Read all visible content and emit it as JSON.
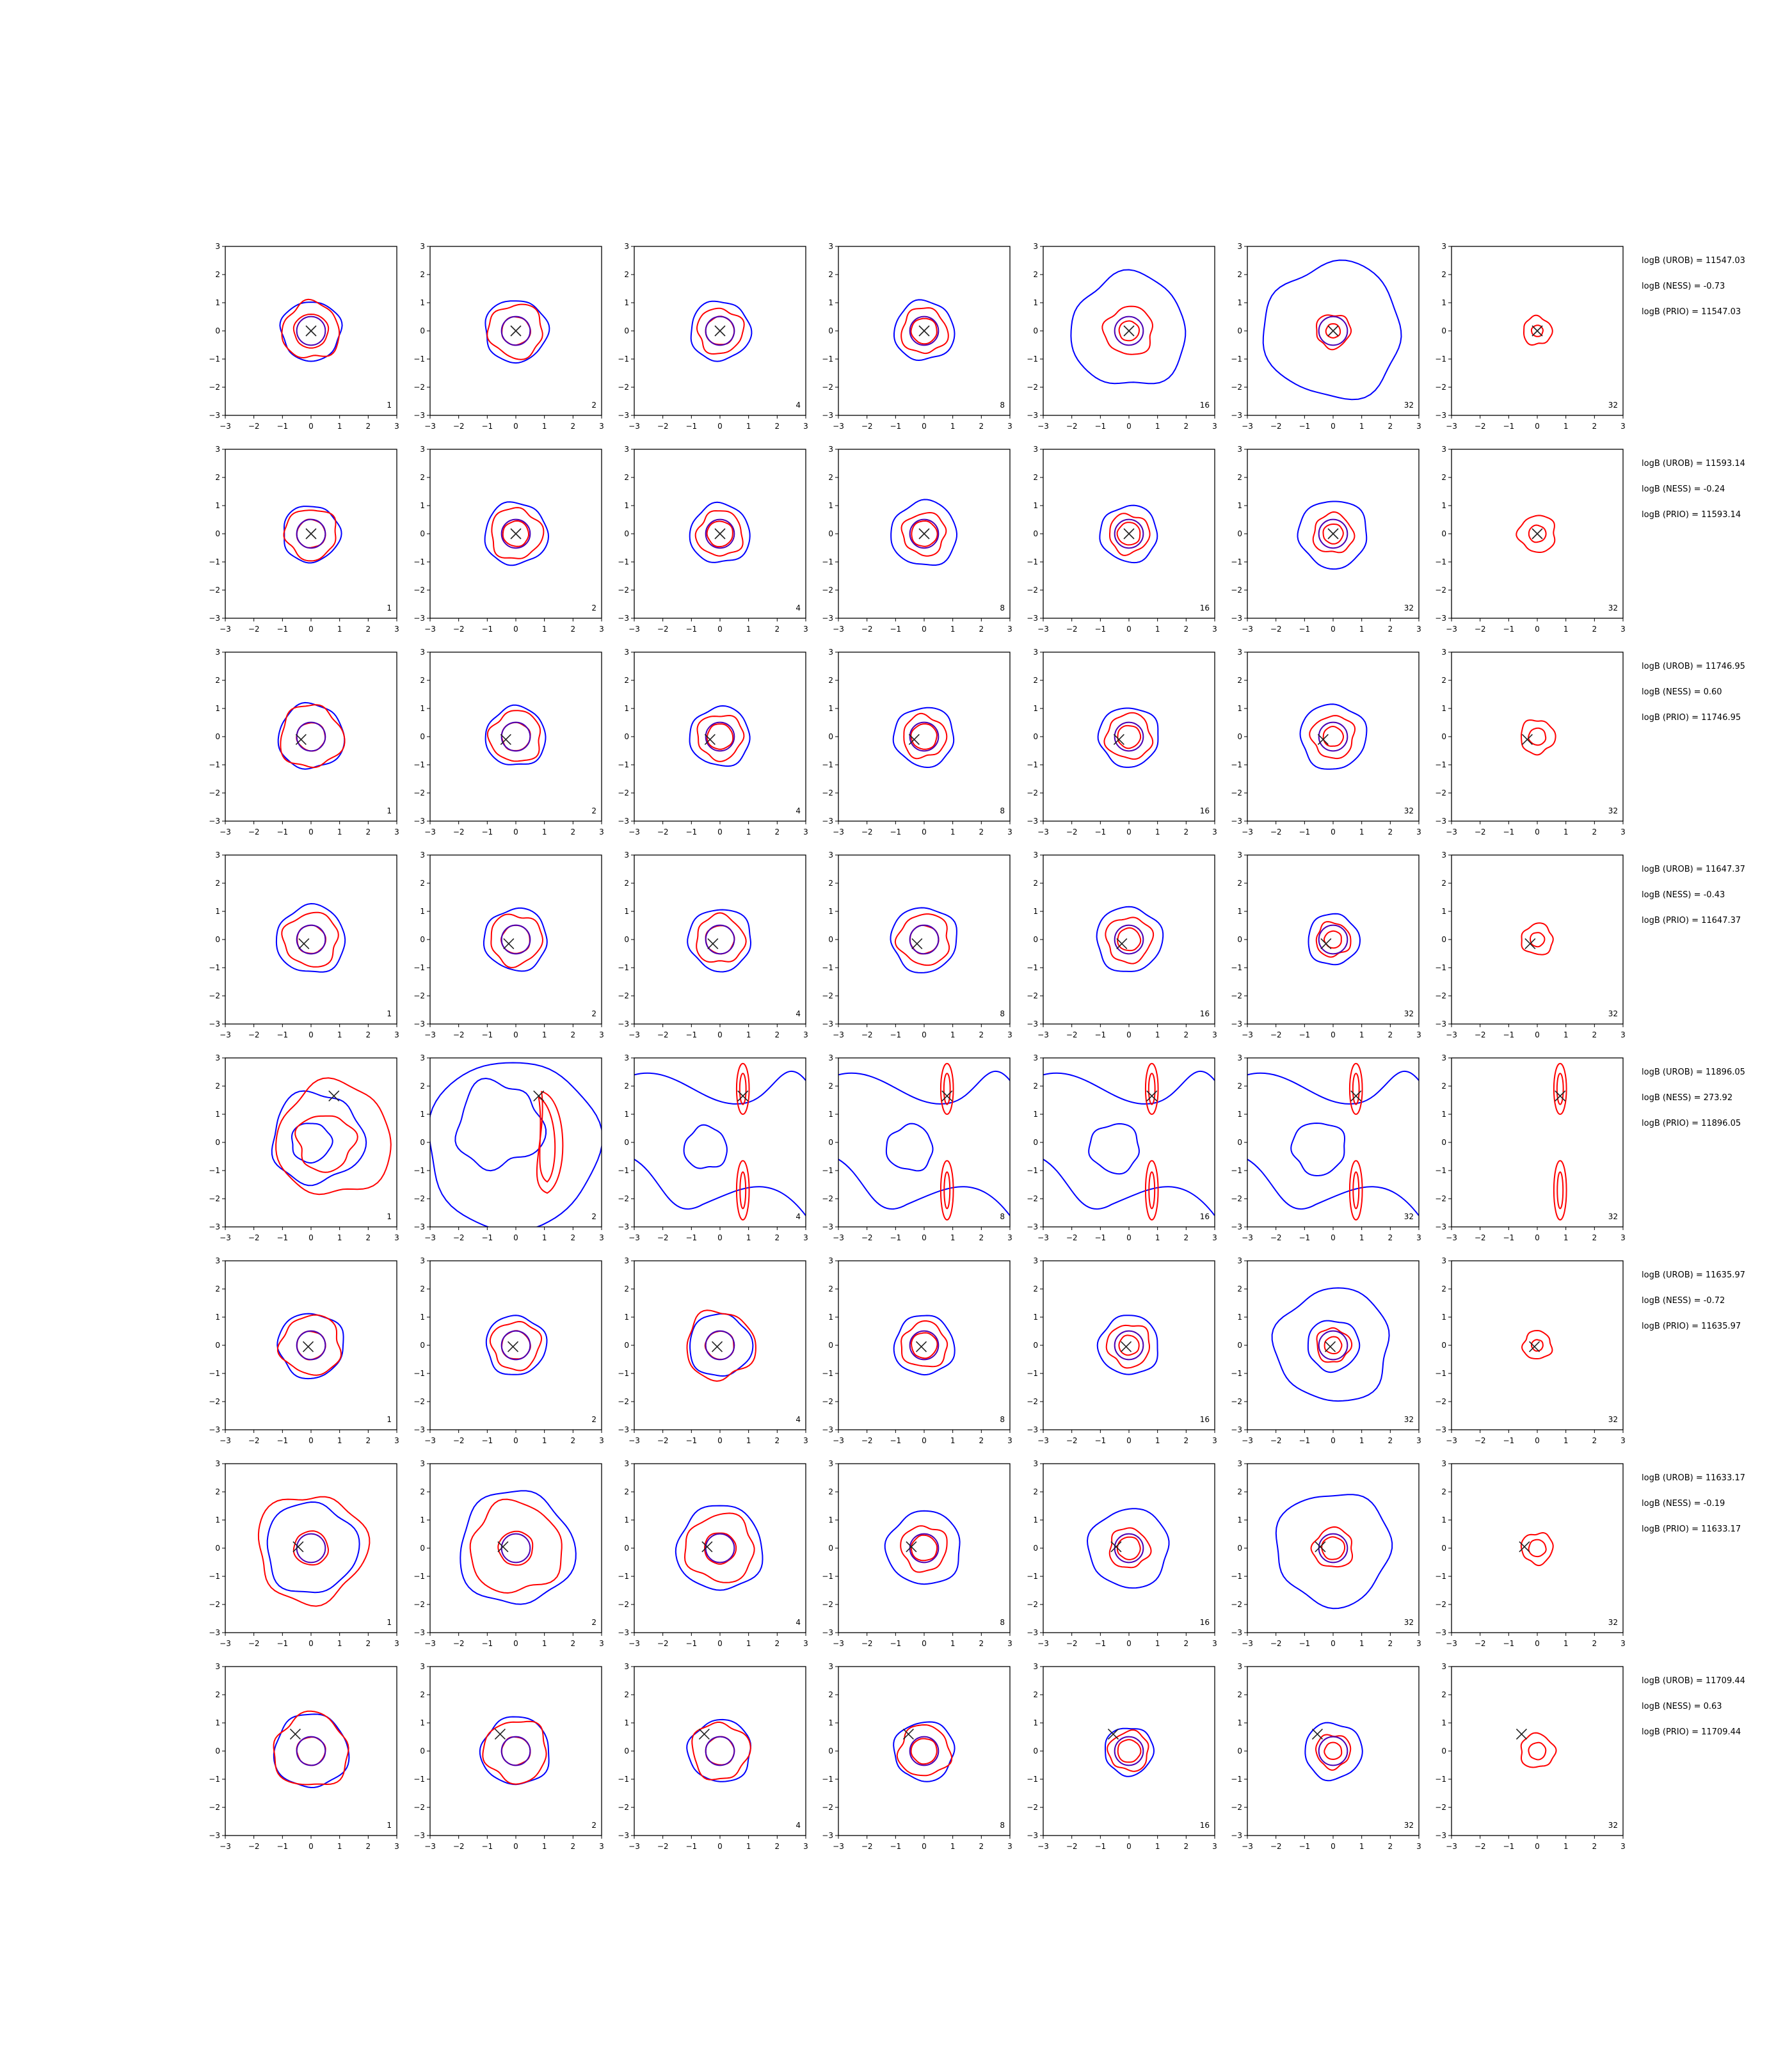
{
  "colors": {
    "blue": "#0000ff",
    "red": "#ff0000",
    "truth": "#222222",
    "axes": "#000000"
  },
  "chart_data": {
    "type": "contour",
    "layout": "grid 8 rows x 7 columns of contour panels",
    "xlim": [
      -3,
      3
    ],
    "ylim": [
      -3,
      3
    ],
    "ticks": [
      -3,
      -2,
      -1,
      0,
      1,
      2,
      3
    ],
    "column_labels": [
      "1",
      "2",
      "4",
      "8",
      "16",
      "32",
      "32"
    ],
    "rows": [
      {
        "truth": [
          0.0,
          0.0
        ],
        "annotations": [
          "logB (UROB) = 11547.03",
          "logB (NESS) = -0.73",
          "logB (PRIO) = 11547.03"
        ],
        "panels": [
          {
            "blue": [
              1.05
            ],
            "red": [
              0.6,
              1.0
            ]
          },
          {
            "blue": [
              1.1
            ],
            "red": [
              0.5,
              0.95
            ]
          },
          {
            "blue": [
              1.05
            ],
            "red": [
              0.5,
              0.8
            ]
          },
          {
            "blue": [
              1.05
            ],
            "red": [
              0.45,
              0.8
            ]
          },
          {
            "blue": [
              2.0
            ],
            "red": [
              0.35,
              0.85
            ]
          },
          {
            "blue": [
              2.4
            ],
            "red": [
              0.25,
              0.6
            ]
          },
          {
            "blue": [],
            "red": [
              0.2,
              0.5
            ]
          }
        ]
      },
      {
        "truth": [
          0.0,
          0.0
        ],
        "annotations": [
          "logB (UROB) = 11593.14",
          "logB (NESS) = -0.24",
          "logB (PRIO) = 11593.14"
        ],
        "panels": [
          {
            "blue": [
              1.0
            ],
            "red": [
              0.5,
              0.9
            ]
          },
          {
            "blue": [
              1.1
            ],
            "red": [
              0.45,
              0.9
            ]
          },
          {
            "blue": [
              1.05
            ],
            "red": [
              0.45,
              0.8
            ]
          },
          {
            "blue": [
              1.15
            ],
            "red": [
              0.45,
              0.75
            ]
          },
          {
            "blue": [
              1.0
            ],
            "red": [
              0.4,
              0.7
            ]
          },
          {
            "blue": [
              1.2
            ],
            "red": [
              0.35,
              0.7
            ]
          },
          {
            "blue": [],
            "red": [
              0.3,
              0.65
            ]
          }
        ]
      },
      {
        "truth": [
          -0.35,
          -0.1
        ],
        "annotations": [
          "logB (UROB) = 11746.95",
          "logB (NESS) = 0.60",
          "logB (PRIO) = 11746.95"
        ],
        "panels": [
          {
            "blue": [
              1.15
            ],
            "red": [
              0.5,
              1.1
            ]
          },
          {
            "blue": [
              1.05
            ],
            "red": [
              0.5,
              0.9
            ]
          },
          {
            "blue": [
              1.05
            ],
            "red": [
              0.45,
              0.8
            ]
          },
          {
            "blue": [
              1.05
            ],
            "red": [
              0.45,
              0.75
            ]
          },
          {
            "blue": [
              1.05
            ],
            "red": [
              0.4,
              0.8
            ]
          },
          {
            "blue": [
              1.15
            ],
            "red": [
              0.35,
              0.75
            ]
          },
          {
            "blue": [],
            "red": [
              0.3,
              0.6
            ]
          }
        ]
      },
      {
        "truth": [
          -0.25,
          -0.15
        ],
        "annotations": [
          "logB (UROB) = 11647.37",
          "logB (NESS) = -0.43",
          "logB (PRIO) = 11647.37"
        ],
        "panels": [
          {
            "blue": [
              1.2
            ],
            "red": [
              0.5,
              0.95
            ]
          },
          {
            "blue": [
              1.1
            ],
            "red": [
              0.5,
              0.9
            ]
          },
          {
            "blue": [
              1.1
            ],
            "red": [
              0.5,
              0.85
            ]
          },
          {
            "blue": [
              1.15
            ],
            "red": [
              0.5,
              0.9
            ]
          },
          {
            "blue": [
              1.15
            ],
            "red": [
              0.4,
              0.8
            ]
          },
          {
            "blue": [
              0.9
            ],
            "red": [
              0.3,
              0.6
            ]
          },
          {
            "blue": [],
            "red": [
              0.25,
              0.55
            ]
          }
        ]
      },
      {
        "truth": [
          0.8,
          1.65
        ],
        "annotations": [
          "logB (UROB) = 11896.05",
          "logB (NESS) = 273.92",
          "logB (PRIO) = 11896.05"
        ],
        "panels": [
          {
            "blue": [
              0.7,
              1.7
            ],
            "red": [
              1.0,
              2.1
            ]
          },
          {
            "blue": [
              2.9
            ],
            "red": [
              1.2,
              2.0
            ]
          },
          {
            "blue": [],
            "red": []
          },
          {
            "blue": [],
            "red": []
          },
          {
            "blue": [],
            "red": []
          },
          {
            "blue": [],
            "red": []
          },
          {
            "blue": [],
            "red": []
          }
        ]
      },
      {
        "truth": [
          -0.1,
          -0.05
        ],
        "annotations": [
          "logB (UROB) = 11635.97",
          "logB (NESS) = -0.72",
          "logB (PRIO) = 11635.97"
        ],
        "panels": [
          {
            "blue": [
              1.15
            ],
            "red": [
              0.5,
              1.05
            ]
          },
          {
            "blue": [
              1.05
            ],
            "red": [
              0.5,
              0.85
            ]
          },
          {
            "blue": [
              1.1
            ],
            "red": [
              0.5,
              1.2
            ]
          },
          {
            "blue": [
              1.05
            ],
            "red": [
              0.45,
              0.8
            ]
          },
          {
            "blue": [
              1.05
            ],
            "red": [
              0.35,
              0.75
            ]
          },
          {
            "blue": [
              2.0,
              0.9
            ],
            "red": [
              0.3,
              0.6
            ]
          },
          {
            "blue": [],
            "red": [
              0.2,
              0.5
            ]
          }
        ]
      },
      {
        "truth": [
          -0.45,
          0.05
        ],
        "annotations": [
          "logB (UROB) = 11633.17",
          "logB (NESS) = -0.19",
          "logB (PRIO) = 11633.17"
        ],
        "panels": [
          {
            "blue": [
              1.6
            ],
            "red": [
              0.6,
              1.9
            ]
          },
          {
            "blue": [
              2.0
            ],
            "red": [
              0.6,
              1.6
            ]
          },
          {
            "blue": [
              1.5
            ],
            "red": [
              0.55,
              1.2
            ]
          },
          {
            "blue": [
              1.3
            ],
            "red": [
              0.45,
              0.8
            ]
          },
          {
            "blue": [
              1.4
            ],
            "red": [
              0.4,
              0.7
            ]
          },
          {
            "blue": [
              2.0
            ],
            "red": [
              0.4,
              0.7
            ]
          },
          {
            "blue": [],
            "red": [
              0.3,
              0.55
            ]
          }
        ]
      },
      {
        "truth": [
          -0.55,
          0.6
        ],
        "annotations": [
          "logB (UROB) = 11709.44",
          "logB (NESS) = 0.63",
          "logB (PRIO) = 11709.44"
        ],
        "panels": [
          {
            "blue": [
              1.3
            ],
            "red": [
              0.5,
              1.3
            ]
          },
          {
            "blue": [
              1.2
            ],
            "red": [
              0.5,
              1.1
            ]
          },
          {
            "blue": [
              1.1
            ],
            "red": [
              0.5,
              1.0
            ]
          },
          {
            "blue": [
              1.05
            ],
            "red": [
              0.45,
              0.9
            ]
          },
          {
            "blue": [
              0.85
            ],
            "red": [
              0.4,
              0.7
            ]
          },
          {
            "blue": [
              1.0
            ],
            "red": [
              0.3,
              0.6
            ]
          },
          {
            "blue": [],
            "red": [
              0.3,
              0.6
            ]
          }
        ]
      }
    ]
  }
}
